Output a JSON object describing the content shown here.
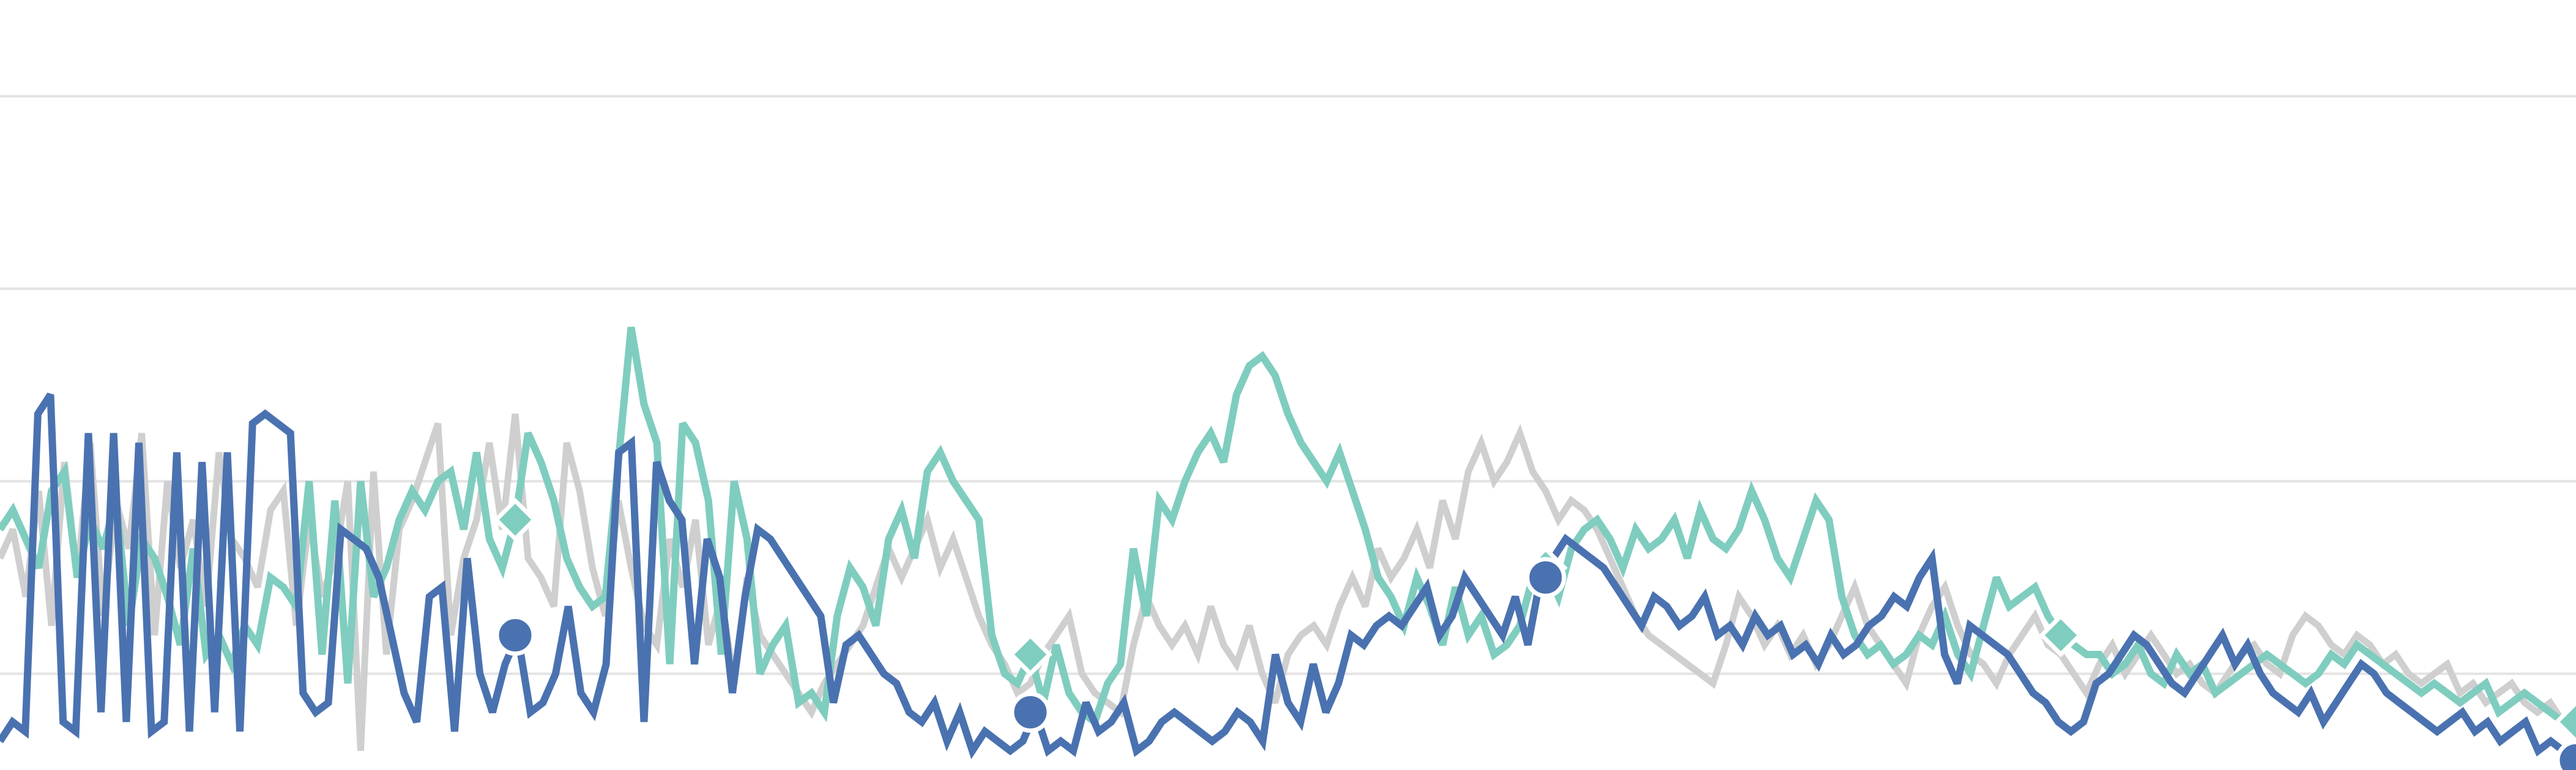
{
  "chart_data": {
    "type": "line",
    "title": "",
    "xlabel": "",
    "ylabel": "",
    "x_range": [
      0,
      200
    ],
    "ylim": [
      0,
      8
    ],
    "gridlines_y": [
      1,
      3,
      5,
      7
    ],
    "grid": true,
    "legend": "none",
    "series": [
      {
        "color": "#4a72b0",
        "marker": "circle",
        "marker_at": [
          40,
          80,
          120,
          200
        ],
        "values": [
          0.3,
          0.5,
          0.4,
          3.7,
          3.9,
          0.5,
          0.4,
          3.5,
          0.6,
          3.5,
          0.5,
          3.4,
          0.4,
          0.5,
          3.3,
          0.4,
          3.2,
          0.6,
          3.3,
          0.4,
          3.6,
          3.7,
          3.6,
          3.5,
          0.8,
          0.6,
          0.7,
          2.5,
          2.4,
          2.3,
          2.0,
          1.4,
          0.8,
          0.5,
          1.8,
          1.9,
          0.4,
          2.2,
          1.0,
          0.6,
          1.1,
          1.4,
          0.6,
          0.7,
          1.0,
          1.7,
          0.8,
          0.6,
          1.1,
          3.3,
          3.4,
          0.5,
          3.2,
          2.8,
          2.6,
          1.1,
          2.4,
          2.0,
          0.8,
          1.8,
          2.5,
          2.4,
          2.2,
          2.0,
          1.8,
          1.6,
          0.7,
          1.3,
          1.4,
          1.2,
          1.0,
          0.9,
          0.6,
          0.5,
          0.7,
          0.3,
          0.6,
          0.2,
          0.4,
          0.3,
          0.2,
          0.3,
          0.6,
          0.2,
          0.3,
          0.2,
          0.7,
          0.4,
          0.5,
          0.7,
          0.2,
          0.3,
          0.5,
          0.6,
          0.5,
          0.4,
          0.3,
          0.4,
          0.6,
          0.5,
          0.3,
          1.2,
          0.7,
          0.5,
          1.1,
          0.6,
          0.9,
          1.4,
          1.3,
          1.5,
          1.6,
          1.5,
          1.7,
          1.9,
          1.4,
          1.6,
          2.0,
          1.8,
          1.6,
          1.4,
          1.8,
          1.3,
          2.0,
          2.2,
          2.4,
          2.3,
          2.2,
          2.1,
          1.9,
          1.7,
          1.5,
          1.8,
          1.7,
          1.5,
          1.6,
          1.8,
          1.4,
          1.5,
          1.3,
          1.6,
          1.4,
          1.5,
          1.2,
          1.3,
          1.1,
          1.4,
          1.2,
          1.3,
          1.5,
          1.6,
          1.8,
          1.7,
          2.0,
          2.2,
          1.2,
          0.9,
          1.5,
          1.4,
          1.3,
          1.2,
          1.0,
          0.8,
          0.7,
          0.5,
          0.4,
          0.5,
          0.9,
          1.0,
          1.2,
          1.4,
          1.3,
          1.1,
          0.9,
          0.8,
          1.0,
          1.2,
          1.4,
          1.1,
          1.3,
          1.0,
          0.8,
          0.7,
          0.6,
          0.8,
          0.5,
          0.7,
          0.9,
          1.1,
          1.0,
          0.8,
          0.7,
          0.6,
          0.5,
          0.4,
          0.5,
          0.6,
          0.4,
          0.5,
          0.3,
          0.4,
          0.5,
          0.2,
          0.3,
          0.2,
          0.1
        ]
      },
      {
        "color": "#7fcdbf",
        "marker": "diamond",
        "marker_at": [
          40,
          80,
          120,
          160,
          200
        ],
        "values": [
          2.5,
          2.7,
          2.4,
          2.1,
          2.9,
          3.1,
          2.0,
          2.6,
          2.3,
          2.8,
          1.5,
          2.4,
          2.2,
          1.8,
          1.3,
          2.3,
          1.2,
          1.4,
          1.1,
          1.5,
          1.3,
          2.0,
          1.9,
          1.7,
          3.0,
          1.2,
          2.8,
          0.9,
          3.0,
          1.8,
          2.1,
          2.6,
          2.9,
          2.7,
          3.0,
          3.1,
          2.5,
          3.3,
          2.4,
          2.1,
          2.6,
          3.5,
          3.2,
          2.8,
          2.2,
          1.9,
          1.7,
          1.8,
          3.2,
          4.6,
          3.8,
          3.4,
          1.1,
          3.6,
          3.4,
          2.8,
          1.2,
          3.0,
          2.4,
          1.0,
          1.3,
          1.5,
          0.7,
          0.8,
          0.6,
          1.6,
          2.1,
          1.9,
          1.5,
          2.4,
          2.7,
          2.2,
          3.1,
          3.3,
          3.0,
          2.8,
          2.6,
          1.4,
          1.0,
          0.9,
          1.2,
          0.7,
          1.3,
          0.8,
          0.6,
          0.5,
          0.9,
          1.1,
          2.3,
          1.6,
          2.8,
          2.6,
          3.0,
          3.3,
          3.5,
          3.2,
          3.9,
          4.2,
          4.3,
          4.1,
          3.7,
          3.4,
          3.2,
          3.0,
          3.3,
          2.9,
          2.5,
          2.0,
          1.8,
          1.5,
          2.0,
          1.7,
          1.3,
          1.9,
          1.4,
          1.6,
          1.2,
          1.3,
          1.5,
          2.0,
          2.1,
          1.8,
          2.3,
          2.5,
          2.6,
          2.4,
          2.1,
          2.5,
          2.3,
          2.4,
          2.6,
          2.2,
          2.7,
          2.4,
          2.3,
          2.5,
          2.9,
          2.6,
          2.2,
          2.0,
          2.4,
          2.8,
          2.6,
          1.8,
          1.4,
          1.2,
          1.3,
          1.1,
          1.2,
          1.4,
          1.3,
          1.6,
          1.2,
          1.0,
          1.5,
          2.0,
          1.7,
          1.8,
          1.9,
          1.6,
          1.4,
          1.3,
          1.2,
          1.2,
          1.0,
          1.1,
          1.3,
          1.0,
          0.9,
          1.2,
          1.0,
          1.1,
          0.8,
          0.9,
          1.0,
          1.1,
          1.2,
          1.1,
          1.0,
          0.9,
          1.0,
          1.2,
          1.1,
          1.3,
          1.2,
          1.1,
          1.0,
          0.9,
          0.8,
          0.9,
          0.8,
          0.7,
          0.8,
          0.9,
          0.6,
          0.7,
          0.8,
          0.7,
          0.6,
          0.5,
          0.5
        ]
      },
      {
        "color": "#cfcfcf",
        "marker": "none",
        "values": [
          2.2,
          2.5,
          1.8,
          2.9,
          1.5,
          3.2,
          2.0,
          3.4,
          1.6,
          2.8,
          2.3,
          3.5,
          1.4,
          3.0,
          2.1,
          2.6,
          1.7,
          3.3,
          2.4,
          2.2,
          1.9,
          2.7,
          2.9,
          1.5,
          2.6,
          1.8,
          2.2,
          3.0,
          0.2,
          3.1,
          1.2,
          2.5,
          2.8,
          3.2,
          3.6,
          1.4,
          2.2,
          2.6,
          3.4,
          2.5,
          3.7,
          2.2,
          2.0,
          1.7,
          3.4,
          2.9,
          2.1,
          1.6,
          2.8,
          2.1,
          1.5,
          1.3,
          2.4,
          1.9,
          2.6,
          1.3,
          1.8,
          0.9,
          2.0,
          1.4,
          1.2,
          1.0,
          0.8,
          0.6,
          0.9,
          1.1,
          1.3,
          1.5,
          1.9,
          2.3,
          2.0,
          2.3,
          2.6,
          2.1,
          2.4,
          2.0,
          1.6,
          1.3,
          1.1,
          0.8,
          0.9,
          1.2,
          1.4,
          1.6,
          1.0,
          0.8,
          0.7,
          0.6,
          1.3,
          1.8,
          1.5,
          1.3,
          1.5,
          1.2,
          1.7,
          1.3,
          1.1,
          1.5,
          1.0,
          0.7,
          1.2,
          1.4,
          1.5,
          1.3,
          1.7,
          2.0,
          1.7,
          2.3,
          2.0,
          2.2,
          2.5,
          2.1,
          2.8,
          2.4,
          3.1,
          3.4,
          3.0,
          3.2,
          3.5,
          3.1,
          2.9,
          2.6,
          2.8,
          2.7,
          2.5,
          2.2,
          1.9,
          1.6,
          1.4,
          1.3,
          1.2,
          1.1,
          1.0,
          0.9,
          1.3,
          1.8,
          1.6,
          1.3,
          1.5,
          1.2,
          1.4,
          1.1,
          1.3,
          1.6,
          1.9,
          1.5,
          1.3,
          1.1,
          0.9,
          1.4,
          1.7,
          1.9,
          1.5,
          1.2,
          1.1,
          0.9,
          1.2,
          1.4,
          1.6,
          1.3,
          1.2,
          1.0,
          0.8,
          1.1,
          1.3,
          1.0,
          1.2,
          1.4,
          1.2,
          1.0,
          1.1,
          0.9,
          0.8,
          1.0,
          1.2,
          1.3,
          1.1,
          1.0,
          1.4,
          1.6,
          1.5,
          1.3,
          1.2,
          1.4,
          1.3,
          1.1,
          1.2,
          1.0,
          0.9,
          1.0,
          1.1,
          0.8,
          0.9,
          0.7,
          0.8,
          0.9,
          0.7,
          0.6,
          0.7,
          0.5,
          0.5
        ]
      }
    ]
  }
}
